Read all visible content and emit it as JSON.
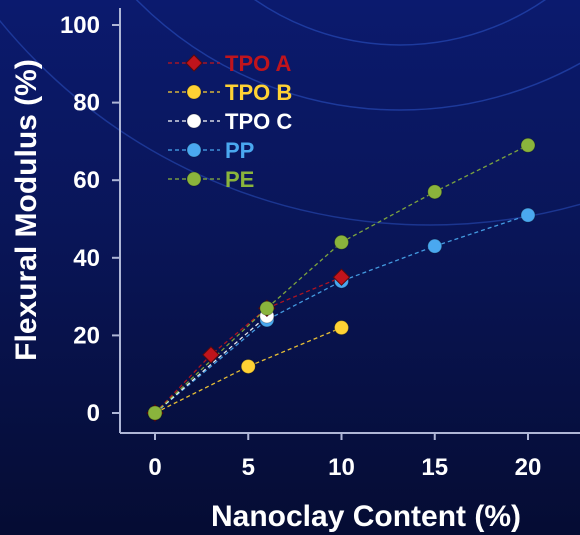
{
  "chart_data": {
    "type": "scatter",
    "title": "",
    "xlabel": "Nanoclay Content (%)",
    "ylabel": "Flexural Modulus (%)",
    "xlim": [
      -3,
      23
    ],
    "ylim": [
      0,
      100
    ],
    "xticks": [
      0,
      5,
      10,
      15,
      20
    ],
    "yticks": [
      0,
      20,
      40,
      60,
      80,
      100
    ],
    "grid": false,
    "legend": "top-left",
    "series": [
      {
        "name": "TPO A",
        "color": "#c0141c",
        "marker": "diamond",
        "x": [
          0,
          3,
          6,
          10
        ],
        "y": [
          0,
          15,
          27,
          35
        ]
      },
      {
        "name": "TPO B",
        "color": "#ffd234",
        "marker": "circle",
        "x": [
          0,
          5,
          10
        ],
        "y": [
          0,
          12,
          22
        ]
      },
      {
        "name": "TPO C",
        "color": "#ffffff",
        "marker": "circle",
        "x": [
          0,
          6
        ],
        "y": [
          0,
          25
        ]
      },
      {
        "name": "PP",
        "color": "#4aa8f0",
        "marker": "circle",
        "x": [
          0,
          6,
          10,
          15,
          20
        ],
        "y": [
          0,
          24,
          34,
          43,
          51
        ]
      },
      {
        "name": "PE",
        "color": "#8ab43c",
        "marker": "circle",
        "x": [
          0,
          6,
          10,
          15,
          20
        ],
        "y": [
          0,
          27,
          44,
          57,
          69
        ]
      }
    ]
  }
}
